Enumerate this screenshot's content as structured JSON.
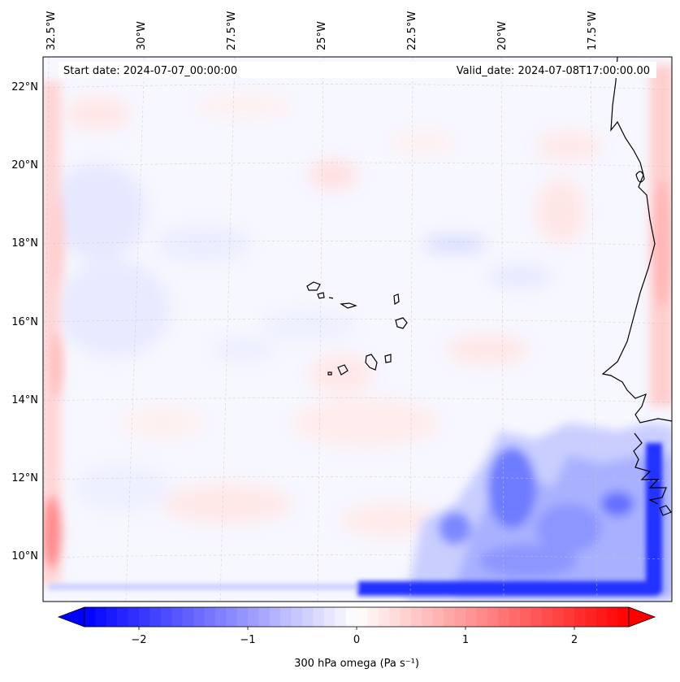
{
  "map": {
    "start_date_label": "Start date: 2024-07-07_00:00:00",
    "valid_date_label": "Valid_date: 2024-07-08T17:00:00.00",
    "lon_labels": [
      "32.5°W",
      "30°W",
      "27.5°W",
      "25°W",
      "22.5°W",
      "20°W",
      "17.5°W"
    ],
    "lat_labels": [
      "22°N",
      "20°N",
      "18°N",
      "16°N",
      "14°N",
      "12°N",
      "10°N"
    ],
    "coastline_color": "#000000",
    "gridline_color": "#c8c8c8"
  },
  "colorbar": {
    "label": "300 hPa omega (Pa s⁻¹)",
    "ticks": [
      "−2",
      "−1",
      "0",
      "1",
      "2"
    ],
    "tick_values": [
      -2,
      -1,
      0,
      1,
      2
    ],
    "range": [
      -2.5,
      2.5
    ],
    "extend": "both",
    "colormap": "bwr",
    "low_color": "#0000ff",
    "mid_color": "#ffffff",
    "high_color": "#ff0000"
  }
}
